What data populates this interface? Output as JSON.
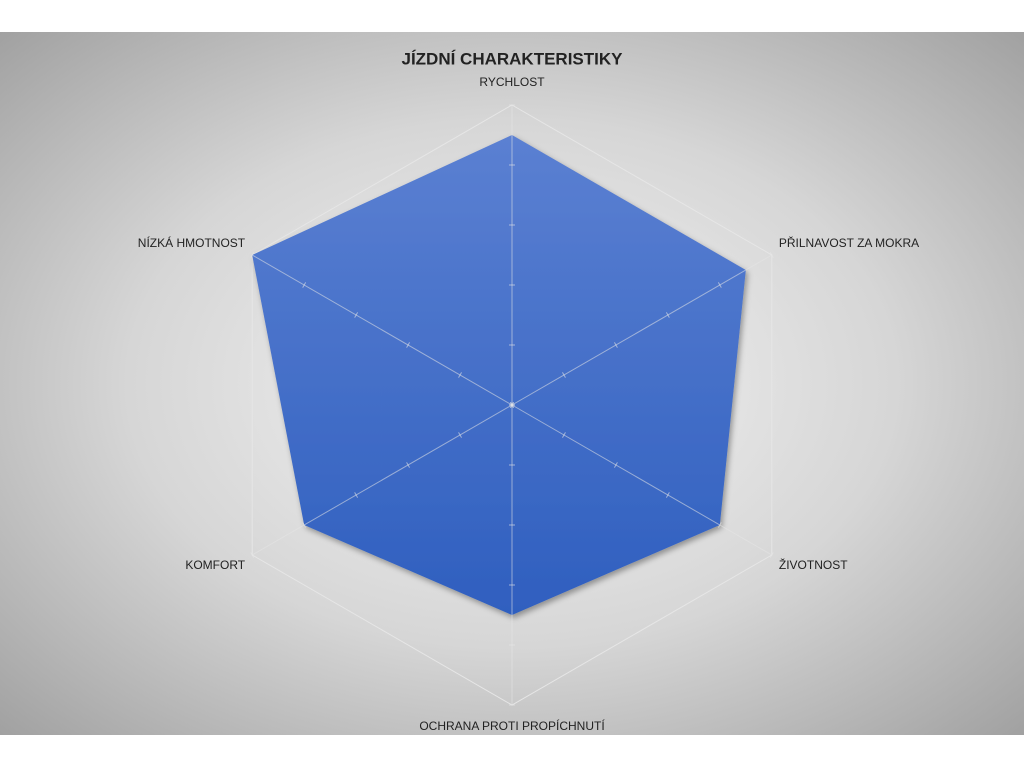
{
  "chart_data": {
    "type": "radar",
    "title": "JÍZDNÍ CHARAKTERISTIKY",
    "categories": [
      "RYCHLOST",
      "PŘILNAVOST ZA MOKRA",
      "ŽIVOTNOST",
      "OCHRANA PROTI PROPÍCHNUTÍ",
      "KOMFORT",
      "NÍZKÁ HMOTNOST"
    ],
    "values": [
      4.5,
      4.5,
      4,
      3.5,
      4,
      5
    ],
    "color": "#4472c4",
    "rlim": [
      0,
      5
    ],
    "rticks": [
      0,
      1,
      2,
      3,
      4,
      5
    ]
  }
}
